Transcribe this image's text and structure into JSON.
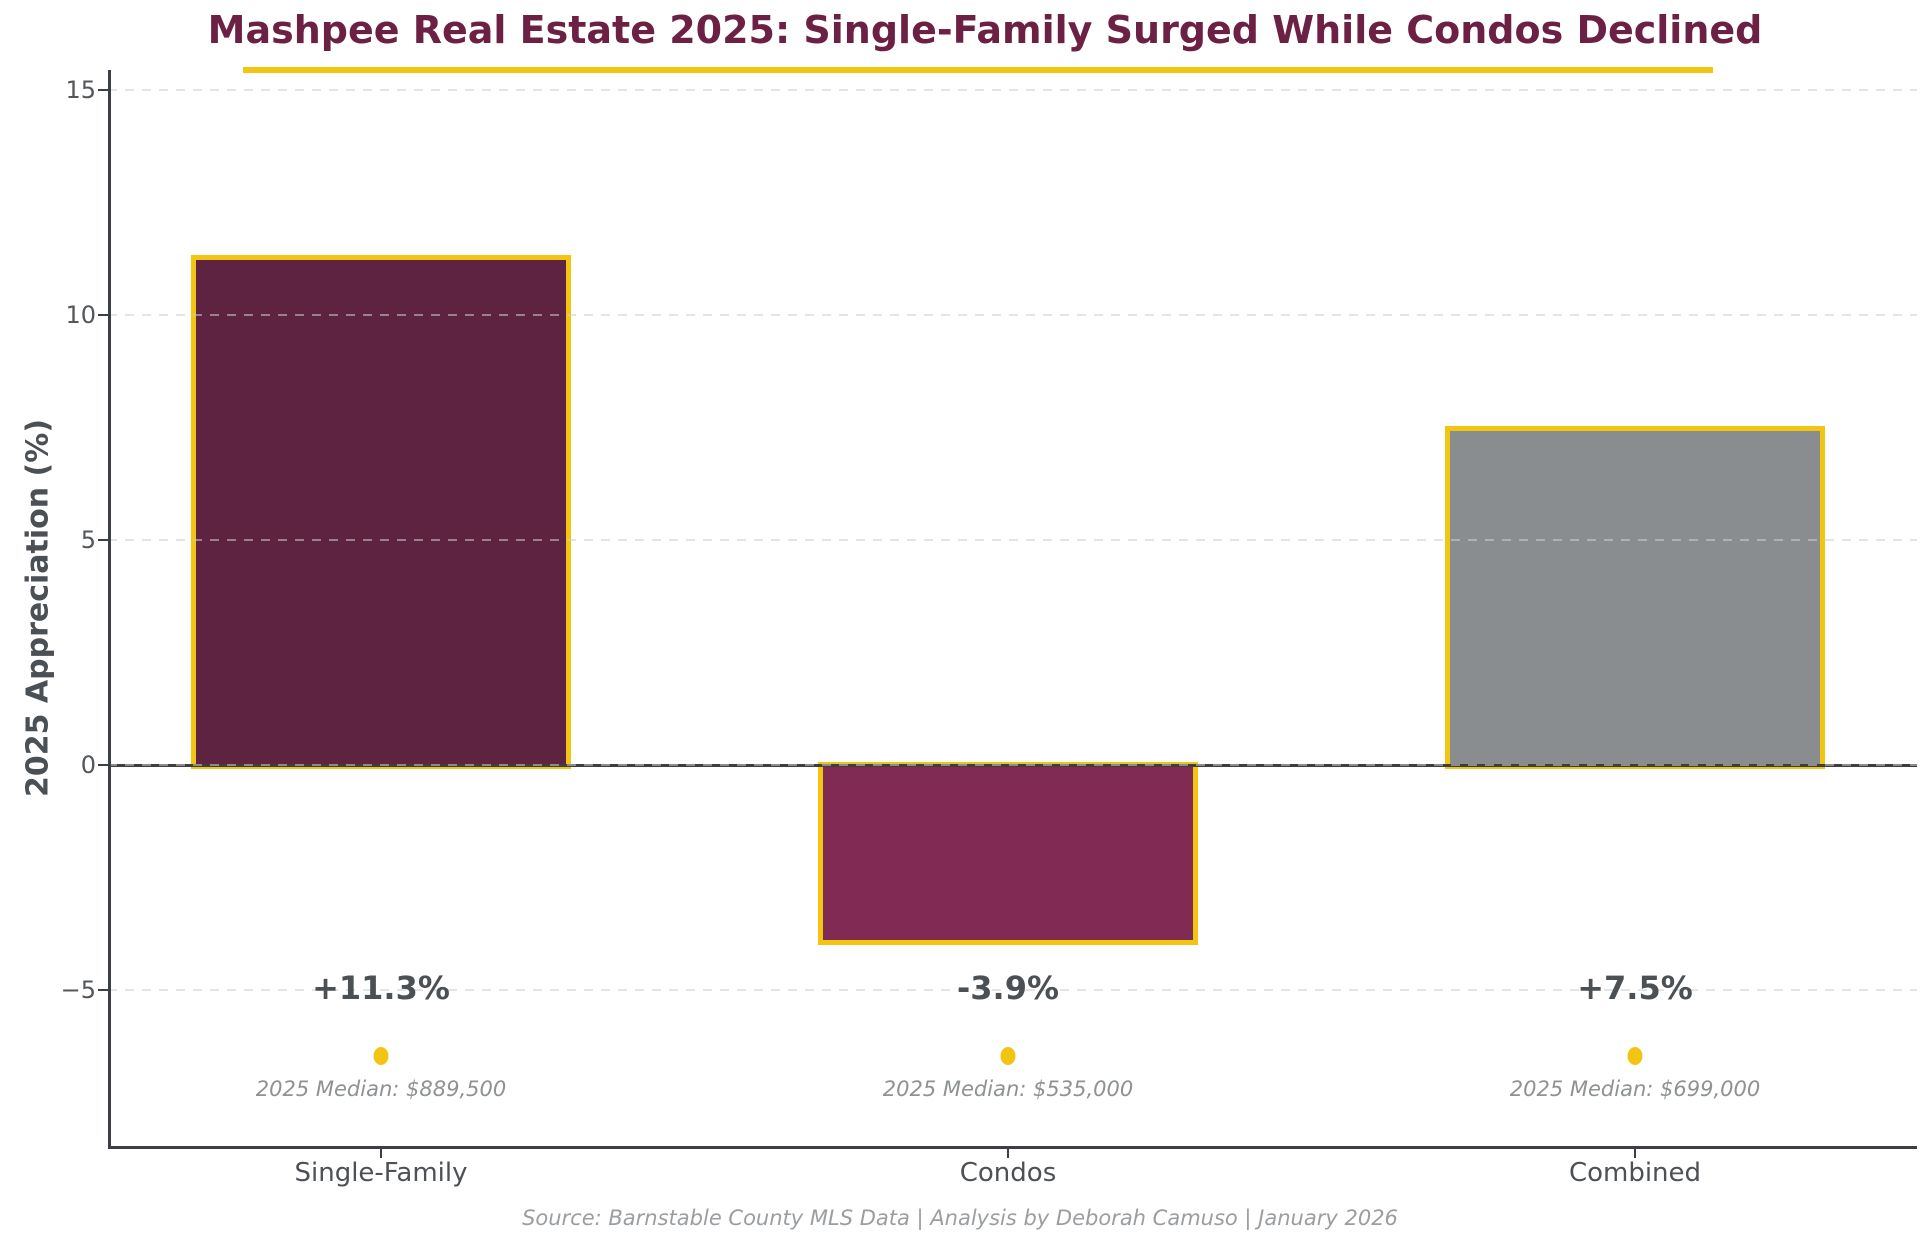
{
  "chart_data": {
    "type": "bar",
    "title": "Mashpee Real Estate 2025: Single-Family Surged While Condos Declined",
    "ylabel": "2025 Appreciation (%)",
    "xlabel": "",
    "source": "Source: Barnstable County MLS Data | Analysis by Deborah Camuso | January 2026",
    "categories": [
      "Single-Family",
      "Condos",
      "Combined"
    ],
    "values": [
      11.3,
      -3.9,
      7.5
    ],
    "items": [
      {
        "category": "Single-Family",
        "value": 11.3,
        "bar_label": "+11.3%",
        "median_label": "2025 Median: $889,500",
        "fill": "#5e2341"
      },
      {
        "category": "Condos",
        "value": -3.9,
        "bar_label": "-3.9%",
        "median_label": "2025 Median: $535,000",
        "fill": "#812a54"
      },
      {
        "category": "Combined",
        "value": 7.5,
        "bar_label": "+7.5%",
        "median_label": "2025 Median: $699,000",
        "fill": "#8a8d90"
      }
    ],
    "yticks": [
      {
        "label": "15",
        "value": 15
      },
      {
        "label": "10",
        "value": 10
      },
      {
        "label": "5",
        "value": 5
      },
      {
        "label": "0",
        "value": 0
      },
      {
        "label": "−5",
        "value": -5
      }
    ],
    "ylim": [
      -8.5,
      15.4
    ],
    "grid": true,
    "grid_style": "dashed",
    "legend": false,
    "colors": {
      "title": "#6b2044",
      "accent_gold": "#f3c513",
      "bar_single_family": "#5e2341",
      "bar_condos": "#812a54",
      "bar_combined": "#8a8d90",
      "axis": "#3c4045",
      "zero_line": "#3e3e3e",
      "tick_text": "#53575b",
      "value_text": "#4b5054",
      "median_text": "#8e9294",
      "source_text": "#9b9ea1"
    }
  }
}
